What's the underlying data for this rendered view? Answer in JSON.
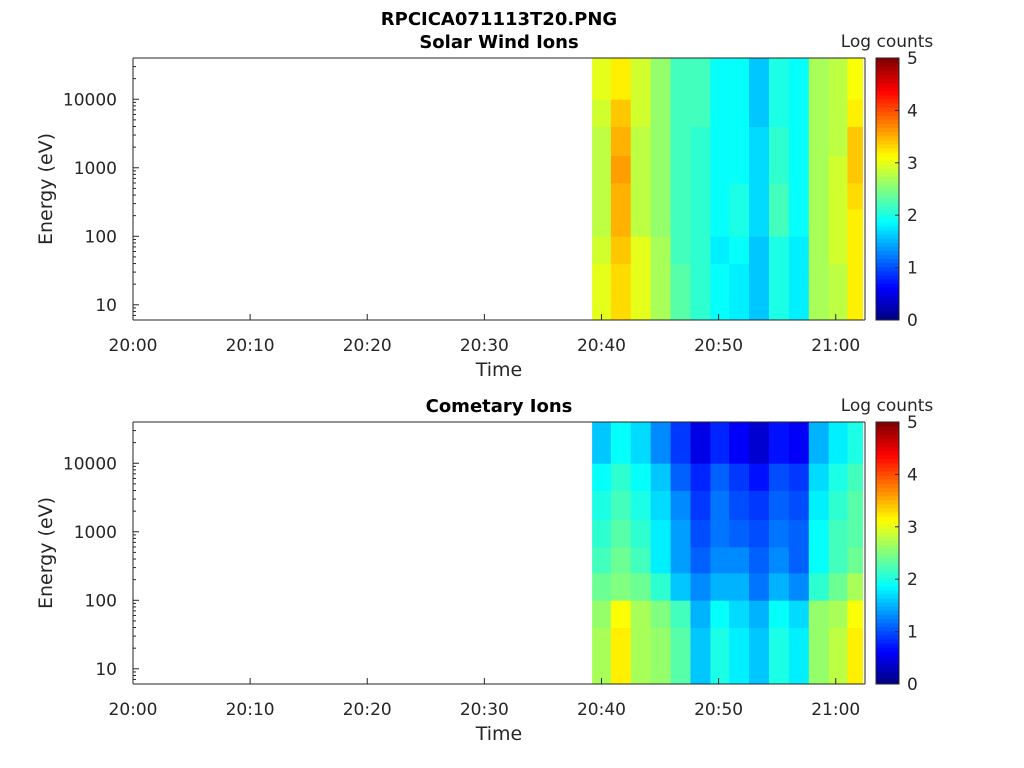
{
  "figure_title": "RPCICA071113T20.PNG",
  "chart_data": [
    {
      "type": "heatmap",
      "title": "Solar Wind Ions",
      "xlabel": "Time",
      "ylabel": "Energy (eV)",
      "x_ticks": [
        "20:00",
        "20:10",
        "20:20",
        "20:30",
        "20:40",
        "20:50",
        "21:00"
      ],
      "x_range_minutes": [
        0,
        62.5
      ],
      "y_scale": "log",
      "y_ticks": [
        10,
        100,
        1000,
        10000
      ],
      "y_tick_labels": [
        "10",
        "100",
        "1000",
        "10000"
      ],
      "y_range": [
        6,
        40000
      ],
      "colorbar": {
        "label": "Log counts",
        "range": [
          0,
          5
        ],
        "ticks": [
          "0",
          "1",
          "2",
          "3",
          "4",
          "5"
        ],
        "colormap": "jet"
      },
      "time_bins_start_minutes": [
        39.2,
        40.8,
        42.5,
        44.2,
        45.9,
        47.6,
        49.3,
        50.9,
        52.6,
        54.3,
        56.0,
        57.7,
        59.4,
        61.0
      ],
      "time_bins_end_minutes": 62.3,
      "energy_bin_edges": [
        6,
        16,
        40,
        100,
        250,
        600,
        1500,
        4000,
        10000,
        40000
      ],
      "values": [
        [
          3.0,
          3.3,
          3.0,
          2.7,
          2.3,
          2.1,
          1.9,
          1.8,
          1.6,
          2.0,
          1.8,
          2.7,
          2.8,
          3.2
        ],
        [
          3.0,
          3.3,
          3.0,
          2.7,
          2.3,
          2.1,
          1.9,
          1.8,
          1.6,
          2.0,
          1.8,
          2.7,
          2.8,
          3.2
        ],
        [
          2.9,
          3.4,
          3.0,
          2.7,
          2.2,
          2.1,
          1.8,
          1.9,
          1.6,
          2.0,
          1.8,
          2.7,
          2.9,
          3.2
        ],
        [
          2.8,
          3.5,
          2.8,
          2.6,
          2.2,
          2.1,
          1.9,
          2.0,
          1.7,
          2.2,
          1.9,
          2.7,
          2.9,
          3.2
        ],
        [
          2.8,
          3.5,
          2.8,
          2.6,
          2.2,
          2.1,
          1.9,
          2.0,
          1.7,
          2.2,
          1.9,
          2.7,
          2.9,
          3.3
        ],
        [
          2.8,
          3.6,
          2.8,
          2.6,
          2.2,
          2.1,
          1.9,
          1.9,
          1.7,
          2.1,
          1.9,
          2.7,
          2.9,
          3.4
        ],
        [
          2.8,
          3.5,
          2.8,
          2.6,
          2.2,
          2.1,
          1.9,
          1.9,
          1.7,
          2.1,
          1.9,
          2.7,
          2.8,
          3.4
        ],
        [
          2.9,
          3.4,
          2.9,
          2.6,
          2.2,
          2.2,
          1.9,
          1.9,
          1.6,
          2.0,
          1.9,
          2.7,
          2.8,
          3.2
        ],
        [
          3.0,
          3.2,
          2.9,
          2.6,
          2.2,
          2.2,
          1.9,
          1.9,
          1.6,
          2.0,
          1.9,
          2.7,
          2.8,
          3.1
        ]
      ]
    },
    {
      "type": "heatmap",
      "title": "Cometary Ions",
      "xlabel": "Time",
      "ylabel": "Energy (eV)",
      "x_ticks": [
        "20:00",
        "20:10",
        "20:20",
        "20:30",
        "20:40",
        "20:50",
        "21:00"
      ],
      "x_range_minutes": [
        0,
        62.5
      ],
      "y_scale": "log",
      "y_ticks": [
        10,
        100,
        1000,
        10000
      ],
      "y_tick_labels": [
        "10",
        "100",
        "1000",
        "10000"
      ],
      "y_range": [
        6,
        40000
      ],
      "colorbar": {
        "label": "Log counts",
        "range": [
          0,
          5
        ],
        "ticks": [
          "0",
          "1",
          "2",
          "3",
          "4",
          "5"
        ],
        "colormap": "jet"
      },
      "time_bins_start_minutes": [
        39.2,
        40.8,
        42.5,
        44.2,
        45.9,
        47.6,
        49.3,
        50.9,
        52.6,
        54.3,
        56.0,
        57.7,
        59.4,
        61.0
      ],
      "time_bins_end_minutes": 62.3,
      "energy_bin_edges": [
        6,
        16,
        40,
        100,
        250,
        600,
        1500,
        4000,
        10000,
        40000
      ],
      "values": [
        [
          2.7,
          3.2,
          2.7,
          2.6,
          2.3,
          1.6,
          2.0,
          1.8,
          1.6,
          2.0,
          1.8,
          2.6,
          2.8,
          3.2
        ],
        [
          2.7,
          3.2,
          2.7,
          2.6,
          2.3,
          1.6,
          2.0,
          1.8,
          1.6,
          2.0,
          1.8,
          2.6,
          2.8,
          3.2
        ],
        [
          2.6,
          3.1,
          2.7,
          2.5,
          2.2,
          1.5,
          1.9,
          1.7,
          1.5,
          1.9,
          1.7,
          2.6,
          2.7,
          3.1
        ],
        [
          2.4,
          2.5,
          2.4,
          2.1,
          1.6,
          1.3,
          1.5,
          1.5,
          1.2,
          1.5,
          1.3,
          2.1,
          2.4,
          2.7
        ],
        [
          2.2,
          2.4,
          2.2,
          1.8,
          1.4,
          1.1,
          1.3,
          1.3,
          1.1,
          1.3,
          1.1,
          1.9,
          2.2,
          2.4
        ],
        [
          2.1,
          2.3,
          2.1,
          1.8,
          1.4,
          1.0,
          1.2,
          1.1,
          1.0,
          1.2,
          1.1,
          1.9,
          2.2,
          2.3
        ],
        [
          2.0,
          2.2,
          2.0,
          1.7,
          1.3,
          0.9,
          1.2,
          1.0,
          0.9,
          1.1,
          1.0,
          1.8,
          2.1,
          2.3
        ],
        [
          1.9,
          2.1,
          1.9,
          1.6,
          1.1,
          0.8,
          1.1,
          0.9,
          0.7,
          1.0,
          0.9,
          1.7,
          2.0,
          2.2
        ],
        [
          1.6,
          1.9,
          1.7,
          1.3,
          0.9,
          0.5,
          0.8,
          0.6,
          0.4,
          0.7,
          0.6,
          1.5,
          1.8,
          2.0
        ]
      ]
    }
  ]
}
